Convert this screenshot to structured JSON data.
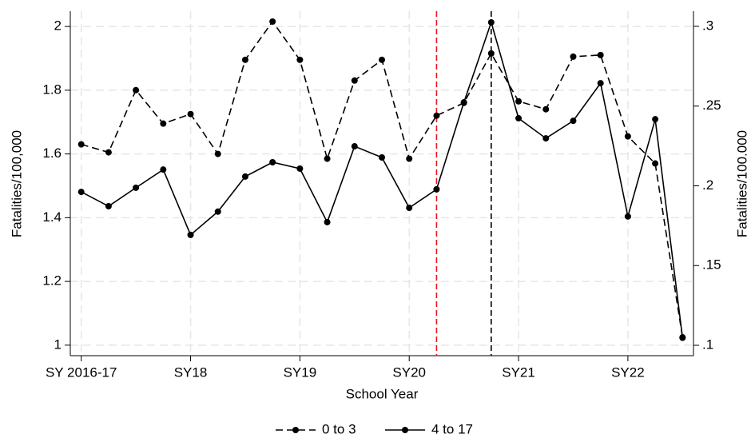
{
  "chart_data": {
    "type": "line",
    "x_label": "School Year",
    "y_label": "Fatalities/100,000",
    "y2_label": "Fatalities/100.000",
    "x": [
      0,
      1,
      2,
      3,
      4,
      5,
      6,
      7,
      8,
      9,
      10,
      11,
      12,
      13,
      14,
      15,
      16,
      17,
      18,
      19,
      20,
      21,
      22
    ],
    "xlim": [
      -0.4,
      22.4
    ],
    "xticks": [
      {
        "value": 0,
        "label": "SY 2016-17"
      },
      {
        "value": 4,
        "label": "SY18"
      },
      {
        "value": 8,
        "label": "SY19"
      },
      {
        "value": 12,
        "label": "SY20"
      },
      {
        "value": 16,
        "label": "SY21"
      },
      {
        "value": 20,
        "label": "SY22"
      }
    ],
    "ylim": [
      0.967,
      2.048
    ],
    "yticks": [
      1,
      1.2,
      1.4,
      1.6,
      1.8,
      2
    ],
    "y2lim": [
      0.0935,
      0.3095
    ],
    "y2ticks": [
      {
        "value": 0.1,
        "label": ".1"
      },
      {
        "value": 0.15,
        "label": ".15"
      },
      {
        "value": 0.2,
        "label": ".2"
      },
      {
        "value": 0.25,
        "label": ".25"
      },
      {
        "value": 0.3,
        "label": ".3"
      }
    ],
    "grid": true,
    "legend": "bottom",
    "series": [
      {
        "name": "0 to 3",
        "color": "#000000",
        "dash": true,
        "axis": "y2",
        "values": [
          0.226,
          0.221,
          0.26,
          0.239,
          0.245,
          0.22,
          0.279,
          0.303,
          0.279,
          0.217,
          0.266,
          0.279,
          0.217,
          0.244,
          0.252,
          0.283,
          0.253,
          0.248,
          0.281,
          0.282,
          0.231,
          0.214,
          0.105
        ]
      },
      {
        "name": "4 to 17",
        "color": "#000000",
        "dash": false,
        "values": [
          1.481,
          1.436,
          1.494,
          1.551,
          1.346,
          1.419,
          1.529,
          1.574,
          1.554,
          1.386,
          1.624,
          1.589,
          1.431,
          1.489,
          1.762,
          2.013,
          1.712,
          1.649,
          1.704,
          1.822,
          1.404,
          1.709,
          1.023
        ]
      }
    ],
    "vlines": [
      {
        "x": 13,
        "color": "#e8141c"
      },
      {
        "x": 15,
        "color": "#000000"
      }
    ]
  }
}
